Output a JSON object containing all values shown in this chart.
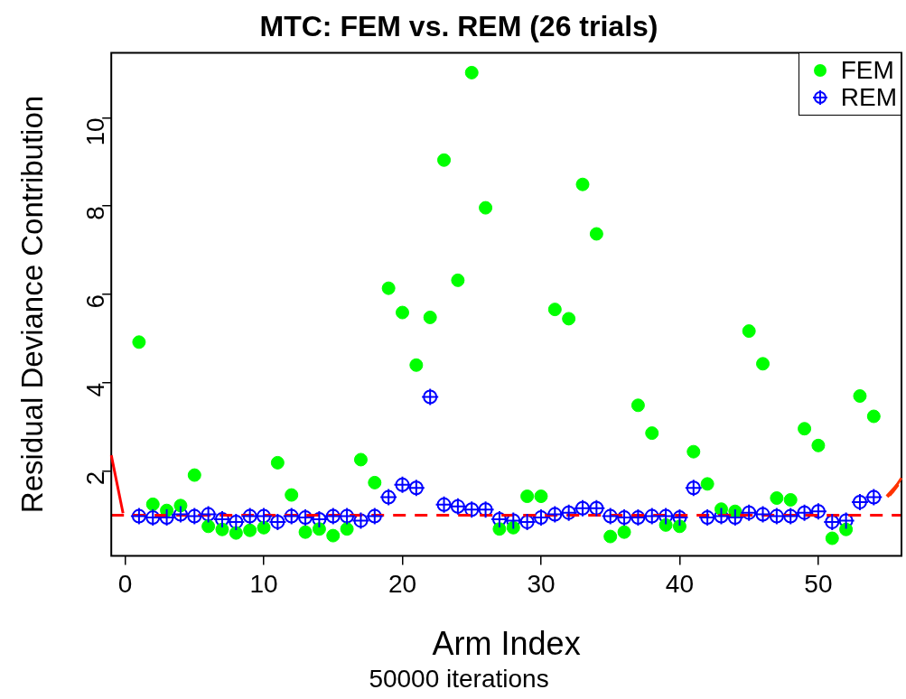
{
  "chart_data": {
    "type": "scatter",
    "title": "MTC: FEM vs. REM (26 trials)",
    "subtitle": "50000 iterations",
    "xlabel": "Arm Index",
    "ylabel": "Residual Deviance Contribution",
    "x": [
      1,
      2,
      3,
      4,
      5,
      6,
      7,
      8,
      9,
      10,
      11,
      12,
      13,
      14,
      15,
      16,
      17,
      18,
      19,
      20,
      21,
      22,
      23,
      24,
      25,
      26,
      27,
      28,
      29,
      30,
      31,
      32,
      33,
      34,
      35,
      36,
      37,
      38,
      39,
      40,
      41,
      42,
      43,
      44,
      45,
      46,
      47,
      48,
      49,
      50,
      51,
      52,
      53,
      54
    ],
    "series": [
      {
        "name": "FEM",
        "color": "#00ff00",
        "marker": "circle",
        "values": [
          4.92,
          1.25,
          1.11,
          1.22,
          1.91,
          0.75,
          0.68,
          0.6,
          0.66,
          0.72,
          2.19,
          1.46,
          0.62,
          0.69,
          0.54,
          0.69,
          2.26,
          1.74,
          6.14,
          5.59,
          4.4,
          5.48,
          9.04,
          6.32,
          11.02,
          7.96,
          0.69,
          0.72,
          1.43,
          1.43,
          5.66,
          5.45,
          8.49,
          7.37,
          0.52,
          0.62,
          3.49,
          2.86,
          0.78,
          0.75,
          2.44,
          1.71,
          1.14,
          1.09,
          5.17,
          4.43,
          1.39,
          1.35,
          2.96,
          2.58,
          0.48,
          0.68,
          3.7,
          3.24
        ]
      },
      {
        "name": "REM",
        "color": "#0000ff",
        "marker": "circle",
        "values": [
          0.98,
          0.95,
          0.95,
          1.02,
          0.98,
          1.02,
          0.91,
          0.85,
          0.98,
          0.98,
          0.85,
          0.98,
          0.95,
          0.91,
          0.98,
          0.98,
          0.88,
          0.98,
          1.41,
          1.69,
          1.62,
          3.68,
          1.24,
          1.2,
          1.13,
          1.13,
          0.91,
          0.88,
          0.85,
          0.95,
          1.02,
          1.06,
          1.16,
          1.16,
          0.98,
          0.95,
          0.95,
          0.98,
          0.98,
          0.95,
          1.62,
          0.95,
          0.98,
          0.95,
          1.06,
          1.02,
          0.98,
          0.98,
          1.06,
          1.09,
          0.85,
          0.88,
          1.3,
          1.41
        ]
      }
    ],
    "ref_lines": [
      {
        "axis": "y",
        "value": 1,
        "color": "#ff0000",
        "line_style": "dashed"
      }
    ],
    "xlim": [
      -1,
      56
    ],
    "xticks": [
      0,
      10,
      20,
      30,
      40,
      50
    ],
    "ylim": [
      0.08,
      11.47
    ],
    "yticks": [
      2,
      4,
      6,
      8,
      10
    ],
    "grid": false,
    "legend": "top right"
  }
}
